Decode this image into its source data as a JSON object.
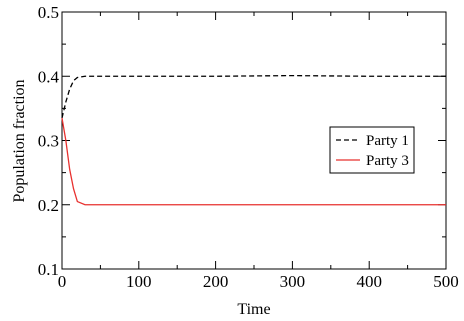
{
  "chart_data": {
    "type": "line",
    "xlabel": "Time",
    "ylabel": "Population fraction",
    "xlim": [
      0,
      500
    ],
    "ylim": [
      0.1,
      0.5
    ],
    "x_ticks": [
      "0",
      "100",
      "200",
      "300",
      "400",
      "500"
    ],
    "y_ticks": [
      "0.1",
      "0.2",
      "0.3",
      "0.4",
      "0.5"
    ],
    "grid": false,
    "legend_position": "right",
    "series": [
      {
        "name": "Party 1",
        "color": "#000000",
        "dash": "dashed",
        "x": [
          0,
          5,
          10,
          15,
          20,
          30,
          50,
          100,
          200,
          300,
          400,
          500
        ],
        "y": [
          0.335,
          0.36,
          0.38,
          0.393,
          0.398,
          0.4,
          0.4,
          0.4,
          0.4,
          0.401,
          0.4,
          0.4
        ]
      },
      {
        "name": "Party 3",
        "color": "#e8312f",
        "dash": "solid",
        "x": [
          0,
          5,
          10,
          15,
          20,
          30,
          50,
          100,
          200,
          300,
          400,
          500
        ],
        "y": [
          0.335,
          0.3,
          0.255,
          0.225,
          0.205,
          0.2,
          0.2,
          0.2,
          0.2,
          0.2,
          0.2,
          0.2
        ]
      }
    ]
  }
}
